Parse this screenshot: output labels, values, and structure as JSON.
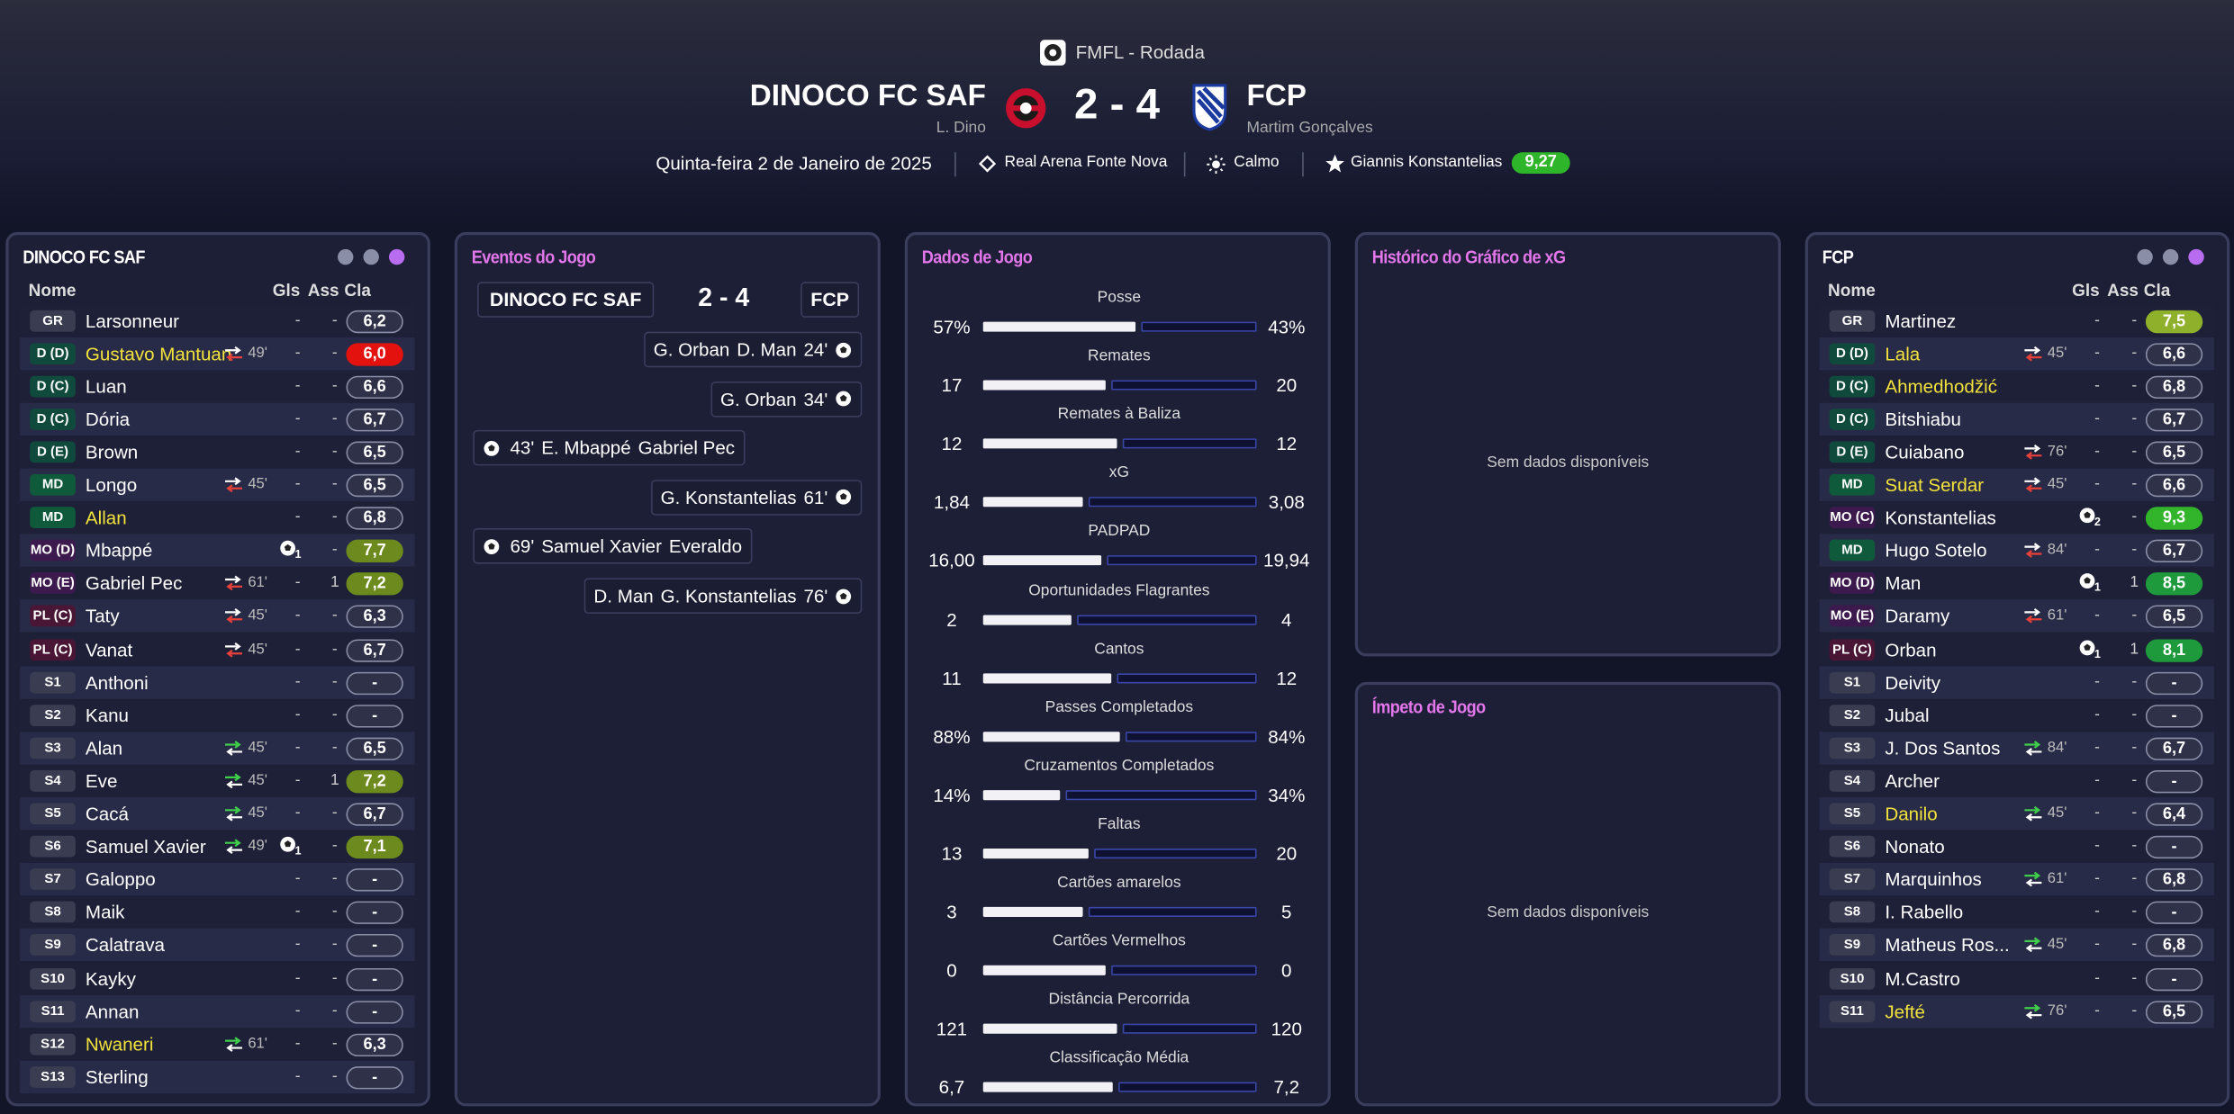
{
  "header": {
    "competition": "FMFL - Rodada",
    "home": {
      "name": "DINOCO FC SAF",
      "manager": "L. Dino"
    },
    "away": {
      "name": "FCP",
      "manager": "Martim Gonçalves"
    },
    "score": "2 - 4",
    "date": "Quinta-feira 2 de Janeiro de 2025",
    "stadium": "Real Arena Fonte Nova",
    "weather": "Calmo",
    "player_of_match": "Giannis Konstantelias",
    "player_of_match_rating": "9,27"
  },
  "home_panel": {
    "title": "DINOCO FC SAF",
    "columns": [
      "Nome",
      "Gls",
      "Ass",
      "Cla"
    ],
    "rows": [
      {
        "pos": "GR",
        "name": "Larsonneur",
        "gls": "-",
        "ass": "-",
        "cla": "6,2"
      },
      {
        "pos": "D (D)",
        "name": "Gustavo Mantuan",
        "highlight": true,
        "sub": {
          "dir": "out",
          "minute": "49'"
        },
        "gls": "-",
        "ass": "-",
        "cla": "6,0",
        "rating_color": "#e3120f"
      },
      {
        "pos": "D (C)",
        "name": "Luan",
        "gls": "-",
        "ass": "-",
        "cla": "6,6"
      },
      {
        "pos": "D (C)",
        "name": "Dória",
        "gls": "-",
        "ass": "-",
        "cla": "6,7"
      },
      {
        "pos": "D (E)",
        "name": "Brown",
        "gls": "-",
        "ass": "-",
        "cla": "6,5"
      },
      {
        "pos": "MD",
        "name": "Longo",
        "sub": {
          "dir": "out",
          "minute": "45'"
        },
        "gls": "-",
        "ass": "-",
        "cla": "6,5"
      },
      {
        "pos": "MD",
        "name": "Allan",
        "highlight": true,
        "gls": "-",
        "ass": "-",
        "cla": "6,8"
      },
      {
        "pos": "MO (D)",
        "name": "Mbappé",
        "goals": "1",
        "ass": "-",
        "cla": "7,7",
        "rating_color": "#6c8a1d"
      },
      {
        "pos": "MO (E)",
        "name": "Gabriel Pec",
        "sub": {
          "dir": "out",
          "minute": "61'"
        },
        "gls": "-",
        "ass": "1",
        "cla": "7,2",
        "rating_color": "#6c8a1d"
      },
      {
        "pos": "PL (C)",
        "name": "Taty",
        "sub": {
          "dir": "out",
          "minute": "45'"
        },
        "gls": "-",
        "ass": "-",
        "cla": "6,3"
      },
      {
        "pos": "PL (C)",
        "name": "Vanat",
        "sub": {
          "dir": "out",
          "minute": "45'"
        },
        "gls": "-",
        "ass": "-",
        "cla": "6,7"
      },
      {
        "pos": "S1",
        "name": "Anthoni",
        "gls": "-",
        "ass": "-",
        "cla": "-"
      },
      {
        "pos": "S2",
        "name": "Kanu",
        "gls": "-",
        "ass": "-",
        "cla": "-"
      },
      {
        "pos": "S3",
        "name": "Alan",
        "sub": {
          "dir": "in",
          "minute": "45'"
        },
        "gls": "-",
        "ass": "-",
        "cla": "6,5"
      },
      {
        "pos": "S4",
        "name": "Eve",
        "sub": {
          "dir": "in",
          "minute": "45'"
        },
        "gls": "-",
        "ass": "1",
        "cla": "7,2",
        "rating_color": "#6c8a1d"
      },
      {
        "pos": "S5",
        "name": "Cacá",
        "sub": {
          "dir": "in",
          "minute": "45'"
        },
        "gls": "-",
        "ass": "-",
        "cla": "6,7"
      },
      {
        "pos": "S6",
        "name": "Samuel Xavier",
        "sub": {
          "dir": "in",
          "minute": "49'"
        },
        "goals": "1",
        "ass": "-",
        "cla": "7,1",
        "rating_color": "#6c8a1d"
      },
      {
        "pos": "S7",
        "name": "Galoppo",
        "gls": "-",
        "ass": "-",
        "cla": "-"
      },
      {
        "pos": "S8",
        "name": "Maik",
        "gls": "-",
        "ass": "-",
        "cla": "-"
      },
      {
        "pos": "S9",
        "name": "Calatrava",
        "gls": "-",
        "ass": "-",
        "cla": "-"
      },
      {
        "pos": "S10",
        "name": "Kayky",
        "gls": "-",
        "ass": "-",
        "cla": "-"
      },
      {
        "pos": "S11",
        "name": "Annan",
        "gls": "-",
        "ass": "-",
        "cla": "-"
      },
      {
        "pos": "S12",
        "name": "Nwaneri",
        "highlight": true,
        "sub": {
          "dir": "in",
          "minute": "61'"
        },
        "gls": "-",
        "ass": "-",
        "cla": "6,3"
      },
      {
        "pos": "S13",
        "name": "Sterling",
        "gls": "-",
        "ass": "-",
        "cla": "-"
      }
    ]
  },
  "events_panel": {
    "title": "Eventos do Jogo",
    "home": "DINOCO FC SAF",
    "score": "2 - 4",
    "away": "FCP",
    "events": [
      {
        "side": "away",
        "names": [
          "G. Orban",
          "D. Man"
        ],
        "minute": "24'"
      },
      {
        "side": "away",
        "names": [
          "G. Orban"
        ],
        "minute": "34'"
      },
      {
        "side": "home",
        "names": [
          "E. Mbappé",
          "Gabriel Pec"
        ],
        "minute": "43'"
      },
      {
        "side": "away",
        "names": [
          "G. Konstantelias"
        ],
        "minute": "61'"
      },
      {
        "side": "home",
        "names": [
          "Samuel Xavier",
          "Everaldo"
        ],
        "minute": "69'"
      },
      {
        "side": "away",
        "names": [
          "D. Man",
          "G. Konstantelias"
        ],
        "minute": "76'"
      }
    ]
  },
  "stats_panel": {
    "title": "Dados de Jogo",
    "stats": [
      {
        "label": "Posse",
        "home": "57%",
        "away": "43%"
      },
      {
        "label": "Remates",
        "home": "17",
        "away": "20"
      },
      {
        "label": "Remates à Baliza",
        "home": "12",
        "away": "12"
      },
      {
        "label": "xG",
        "home": "1,84",
        "away": "3,08"
      },
      {
        "label": "PADPAD",
        "home": "16,00",
        "away": "19,94"
      },
      {
        "label": "Oportunidades Flagrantes",
        "home": "2",
        "away": "4"
      },
      {
        "label": "Cantos",
        "home": "11",
        "away": "12"
      },
      {
        "label": "Passes Completados",
        "home": "88%",
        "away": "84%"
      },
      {
        "label": "Cruzamentos Completados",
        "home": "14%",
        "away": "34%"
      },
      {
        "label": "Faltas",
        "home": "13",
        "away": "20"
      },
      {
        "label": "Cartões amarelos",
        "home": "3",
        "away": "5"
      },
      {
        "label": "Cartões Vermelhos",
        "home": "0",
        "away": "0"
      },
      {
        "label": "Distância Percorrida",
        "home": "121",
        "away": "120"
      },
      {
        "label": "Classificação Média",
        "home": "6,7",
        "away": "7,2"
      }
    ]
  },
  "xg_panel": {
    "title": "Histórico do Gráfico de xG",
    "empty": "Sem dados disponíveis"
  },
  "momentum_panel": {
    "title": "Ímpeto de Jogo",
    "empty": "Sem dados disponíveis"
  },
  "away_panel": {
    "title": "FCP",
    "columns": [
      "Nome",
      "Gls",
      "Ass",
      "Cla"
    ],
    "rows": [
      {
        "pos": "GR",
        "name": "Martinez",
        "gls": "-",
        "ass": "-",
        "cla": "7,5",
        "rating_color": "#8fb02a"
      },
      {
        "pos": "D (D)",
        "name": "Lala",
        "highlight": true,
        "sub": {
          "dir": "out",
          "minute": "45'"
        },
        "gls": "-",
        "ass": "-",
        "cla": "6,6"
      },
      {
        "pos": "D (C)",
        "name": "Ahmedhodžić",
        "highlight": true,
        "gls": "-",
        "ass": "-",
        "cla": "6,8"
      },
      {
        "pos": "D (C)",
        "name": "Bitshiabu",
        "gls": "-",
        "ass": "-",
        "cla": "6,7"
      },
      {
        "pos": "D (E)",
        "name": "Cuiabano",
        "sub": {
          "dir": "out",
          "minute": "76'"
        },
        "gls": "-",
        "ass": "-",
        "cla": "6,5"
      },
      {
        "pos": "MD",
        "name": "Suat Serdar",
        "highlight": true,
        "sub": {
          "dir": "out",
          "minute": "45'"
        },
        "gls": "-",
        "ass": "-",
        "cla": "6,6"
      },
      {
        "pos": "MO (C)",
        "name": "Konstantelias",
        "goals": "2",
        "ass": "-",
        "cla": "9,3",
        "rating_color": "#33b52b"
      },
      {
        "pos": "MD",
        "name": "Hugo Sotelo",
        "sub": {
          "dir": "out",
          "minute": "84'"
        },
        "gls": "-",
        "ass": "-",
        "cla": "6,7"
      },
      {
        "pos": "MO (D)",
        "name": "Man",
        "goals": "1",
        "ass": "1",
        "cla": "8,5",
        "rating_color": "#1e9a3c"
      },
      {
        "pos": "MO (E)",
        "name": "Daramy",
        "sub": {
          "dir": "out",
          "minute": "61'"
        },
        "gls": "-",
        "ass": "-",
        "cla": "6,5"
      },
      {
        "pos": "PL (C)",
        "name": "Orban",
        "goals": "1",
        "ass": "1",
        "cla": "8,1",
        "rating_color": "#1e9a3c"
      },
      {
        "pos": "S1",
        "name": "Deivity",
        "gls": "-",
        "ass": "-",
        "cla": "-"
      },
      {
        "pos": "S2",
        "name": "Jubal",
        "gls": "-",
        "ass": "-",
        "cla": "-"
      },
      {
        "pos": "S3",
        "name": "J. Dos Santos",
        "sub": {
          "dir": "in",
          "minute": "84'"
        },
        "gls": "-",
        "ass": "-",
        "cla": "6,7"
      },
      {
        "pos": "S4",
        "name": "Archer",
        "gls": "-",
        "ass": "-",
        "cla": "-"
      },
      {
        "pos": "S5",
        "name": "Danilo",
        "highlight": true,
        "sub": {
          "dir": "in",
          "minute": "45'"
        },
        "gls": "-",
        "ass": "-",
        "cla": "6,4"
      },
      {
        "pos": "S6",
        "name": "Nonato",
        "gls": "-",
        "ass": "-",
        "cla": "-"
      },
      {
        "pos": "S7",
        "name": "Marquinhos",
        "sub": {
          "dir": "in",
          "minute": "61'"
        },
        "gls": "-",
        "ass": "-",
        "cla": "6,8"
      },
      {
        "pos": "S8",
        "name": "I. Rabello",
        "gls": "-",
        "ass": "-",
        "cla": "-"
      },
      {
        "pos": "S9",
        "name": "Matheus Ros...",
        "sub": {
          "dir": "in",
          "minute": "45'"
        },
        "gls": "-",
        "ass": "-",
        "cla": "6,8"
      },
      {
        "pos": "S10",
        "name": "M.Castro",
        "gls": "-",
        "ass": "-",
        "cla": "-"
      },
      {
        "pos": "S11",
        "name": "Jefté",
        "highlight": true,
        "sub": {
          "dir": "in",
          "minute": "76'"
        },
        "gls": "-",
        "ass": "-",
        "cla": "6,5"
      }
    ]
  }
}
